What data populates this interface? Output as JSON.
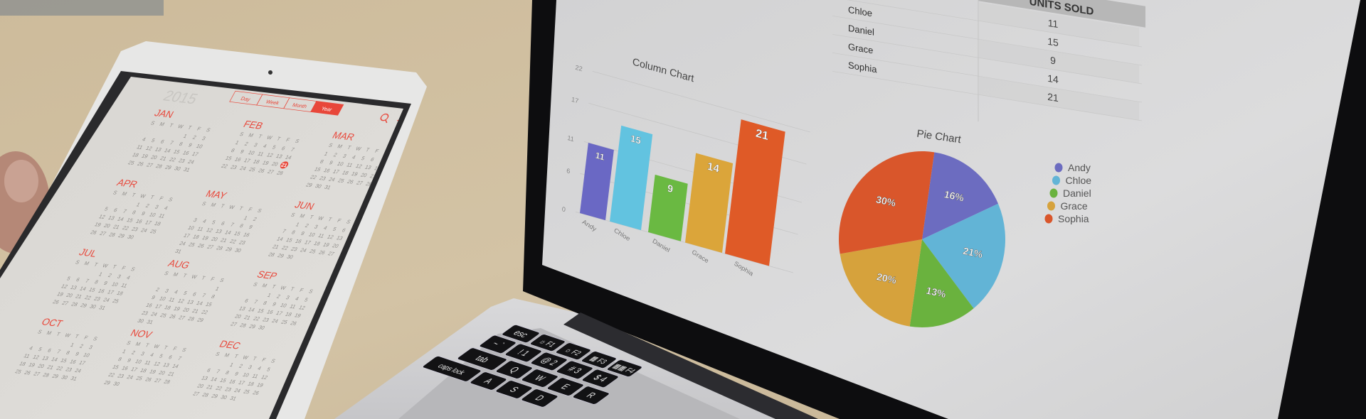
{
  "tablet": {
    "year": "2015",
    "view_tabs": [
      "Day",
      "Week",
      "Month",
      "Year"
    ],
    "selected_tab": "Year",
    "accent_color": "#e8473a",
    "weekday_letters": [
      "S",
      "M",
      "T",
      "W",
      "T",
      "F",
      "S"
    ],
    "months": [
      {
        "name": "JAN",
        "first_weekday": 4,
        "days": 31
      },
      {
        "name": "FEB",
        "first_weekday": 0,
        "days": 28
      },
      {
        "name": "MAR",
        "first_weekday": 0,
        "days": 31
      },
      {
        "name": "APR",
        "first_weekday": 3,
        "days": 30
      },
      {
        "name": "MAY",
        "first_weekday": 5,
        "days": 31
      },
      {
        "name": "JUN",
        "first_weekday": 1,
        "days": 30
      },
      {
        "name": "JUL",
        "first_weekday": 3,
        "days": 31
      },
      {
        "name": "AUG",
        "first_weekday": 6,
        "days": 31
      },
      {
        "name": "SEP",
        "first_weekday": 2,
        "days": 30
      },
      {
        "name": "OCT",
        "first_weekday": 4,
        "days": 31
      },
      {
        "name": "NOV",
        "first_weekday": 0,
        "days": 30
      },
      {
        "name": "DEC",
        "first_weekday": 2,
        "days": 31
      }
    ],
    "today": {
      "month": "FEB",
      "day": 21
    },
    "toolbar_icons": [
      "search-icon",
      "plus-icon"
    ]
  },
  "laptop": {
    "table": {
      "header": "UNITS SOLD",
      "rows": [
        {
          "name": "",
          "value": "11"
        },
        {
          "name": "Chloe",
          "value": "15"
        },
        {
          "name": "Daniel",
          "value": "9"
        },
        {
          "name": "Grace",
          "value": "14"
        },
        {
          "name": "Sophia",
          "value": "21"
        }
      ]
    },
    "keyboard": {
      "rows": [
        [
          "esc",
          "☼ F1",
          "☼ F2",
          "▦ F3",
          "▦▦ F4"
        ],
        [
          "~ `",
          "! 1",
          "@ 2",
          "# 3",
          "$ 4"
        ],
        [
          "tab",
          "Q",
          "W",
          "E",
          "R"
        ],
        [
          "caps lock",
          "A",
          "S",
          "D"
        ]
      ]
    }
  },
  "chart_data": [
    {
      "type": "bar",
      "title": "Column Chart",
      "categories": [
        "Andy",
        "Chloe",
        "Daniel",
        "Grace",
        "Sophia"
      ],
      "values": [
        11,
        15,
        9,
        14,
        21
      ],
      "data_labels": [
        "11",
        "15",
        "9",
        "14",
        "21"
      ],
      "yticks": [
        "0",
        "6",
        "11",
        "17",
        "22"
      ],
      "ylim": [
        0,
        22
      ],
      "grid": true,
      "colors": [
        "#6a68c4",
        "#62c3e0",
        "#6ab942",
        "#dba53a",
        "#df5a27"
      ]
    },
    {
      "type": "pie",
      "title": "Pie Chart",
      "categories": [
        "Andy",
        "Chloe",
        "Daniel",
        "Grace",
        "Sophia"
      ],
      "values": [
        16,
        21,
        13,
        20,
        30
      ],
      "data_labels": [
        "16%",
        "21%",
        "13%",
        "20%",
        "30%"
      ],
      "legend": "right",
      "colors": [
        "#6c6cc0",
        "#62b4d6",
        "#6ab23e",
        "#d6a23c",
        "#d9562b"
      ]
    }
  ]
}
